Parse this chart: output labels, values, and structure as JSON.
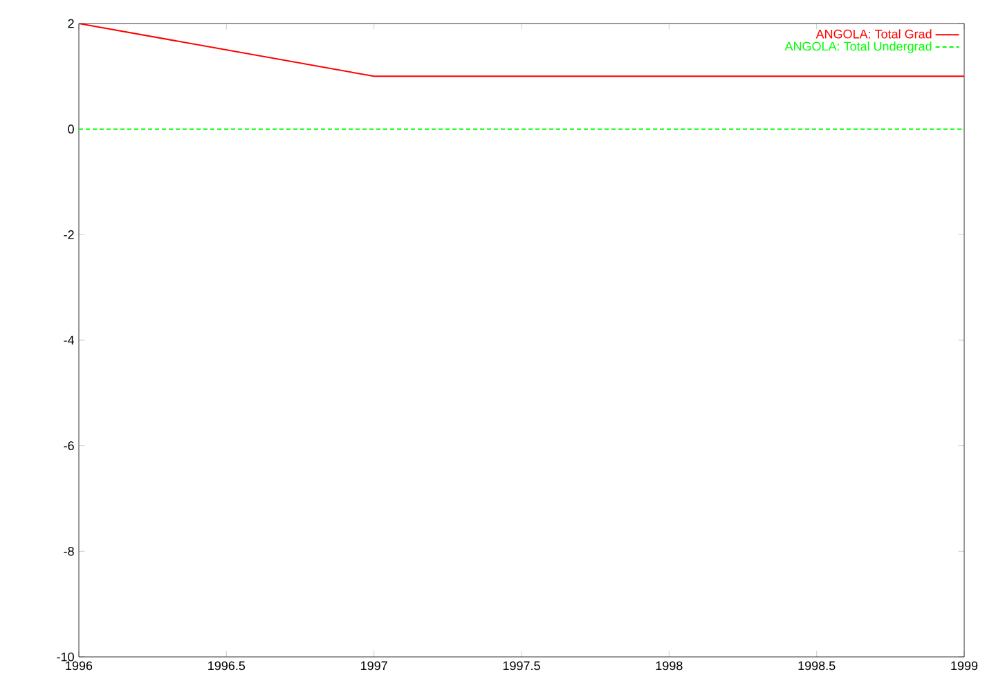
{
  "chart_data": {
    "type": "line",
    "x": [
      1996,
      1997,
      1998,
      1999
    ],
    "series": [
      {
        "name": "ANGOLA: Total Grad",
        "color": "#ff0000",
        "values": [
          2,
          1,
          1,
          1
        ],
        "line_style": "solid"
      },
      {
        "name": "ANGOLA: Total Undergrad",
        "color": "#00ff00",
        "values": [
          0,
          0,
          0,
          0
        ],
        "line_style": "dashed"
      }
    ],
    "xlim": [
      1996,
      1999
    ],
    "ylim": [
      -10,
      2
    ],
    "xticks": [
      1996,
      1996.5,
      1997,
      1997.5,
      1998,
      1998.5,
      1999
    ],
    "yticks": [
      -10,
      -8,
      -6,
      -4,
      -2,
      0,
      2
    ],
    "legend": "top right"
  }
}
